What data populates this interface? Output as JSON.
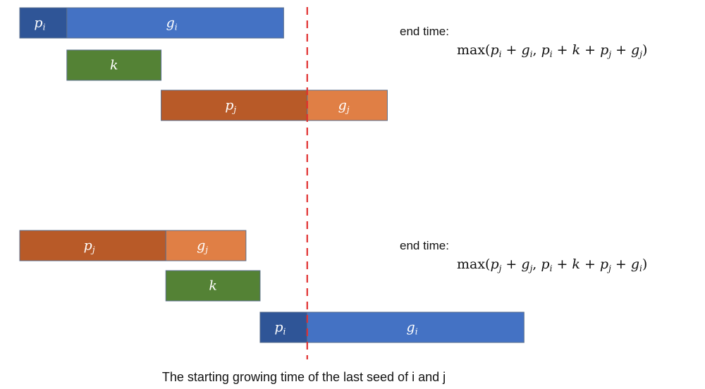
{
  "colors": {
    "p_i": "#2f5597",
    "g_i": "#4472c4",
    "k": "#548235",
    "p_j": "#b85a28",
    "g_j": "#e07f45",
    "border": "#5a6e8c",
    "divider": "#e03030"
  },
  "scenarios": [
    {
      "end_label": "end time:",
      "formula_text": "max(p_i + g_i, p_i + k + p_j + g_j)",
      "formula": {
        "fn": "max",
        "terms": [
          [
            [
              "p",
              "i"
            ],
            [
              "g",
              "i"
            ]
          ],
          [
            [
              "p",
              "i"
            ],
            [
              "k",
              ""
            ],
            [
              "p",
              "j"
            ],
            [
              "g",
              "j"
            ]
          ]
        ]
      },
      "bars": [
        {
          "id": "p_i",
          "var": "p",
          "sub": "i",
          "row": 0,
          "start": 0,
          "dur": 0.5
        },
        {
          "id": "g_i",
          "var": "g",
          "sub": "i",
          "row": 0,
          "start": 0.5,
          "dur": 2.3
        },
        {
          "id": "k",
          "var": "k",
          "sub": "",
          "row": 1,
          "start": 0.5,
          "dur": 1.0
        },
        {
          "id": "p_j",
          "var": "p",
          "sub": "j",
          "row": 2,
          "start": 1.5,
          "dur": 1.55
        },
        {
          "id": "g_j",
          "var": "g",
          "sub": "j",
          "row": 2,
          "start": 3.05,
          "dur": 0.85
        }
      ]
    },
    {
      "end_label": "end time:",
      "formula_text": "max(p_j + g_j, p_i + k + p_j + g_i)",
      "formula": {
        "fn": "max",
        "terms": [
          [
            [
              "p",
              "j"
            ],
            [
              "g",
              "j"
            ]
          ],
          [
            [
              "p",
              "i"
            ],
            [
              "k",
              ""
            ],
            [
              "p",
              "j"
            ],
            [
              "g",
              "i"
            ]
          ]
        ]
      },
      "bars": [
        {
          "id": "p_j",
          "var": "p",
          "sub": "j",
          "row": 0,
          "start": 0,
          "dur": 1.55
        },
        {
          "id": "g_j",
          "var": "g",
          "sub": "j",
          "row": 0,
          "start": 1.55,
          "dur": 0.85
        },
        {
          "id": "k",
          "var": "k",
          "sub": "",
          "row": 1,
          "start": 1.55,
          "dur": 1.0
        },
        {
          "id": "p_i",
          "var": "p",
          "sub": "i",
          "row": 2,
          "start": 2.55,
          "dur": 0.5
        },
        {
          "id": "g_i",
          "var": "g",
          "sub": "i",
          "row": 2,
          "start": 3.05,
          "dur": 2.3
        }
      ]
    }
  ],
  "divider_time": 3.05,
  "caption": "The starting growing time of the last seed of i and j"
}
